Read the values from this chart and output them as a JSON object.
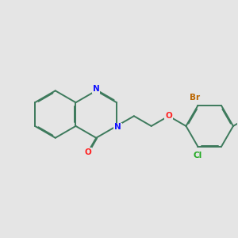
{
  "bg_color": "#e5e5e5",
  "bond_color": "#3d7a5c",
  "bond_width": 1.4,
  "dbo": 0.035,
  "atom_colors": {
    "N": "#1010ff",
    "O": "#ff2222",
    "Br": "#bb6600",
    "Cl": "#22aa22",
    "C": "#2a6a4a"
  },
  "font_size": 7.5,
  "shrink": 0.15
}
